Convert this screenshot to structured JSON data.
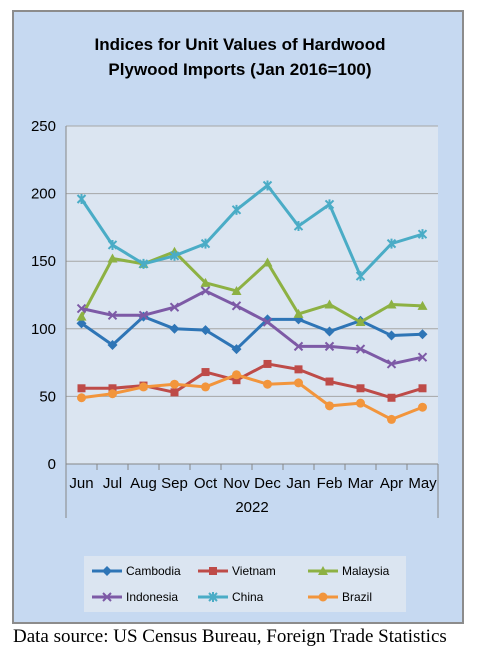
{
  "chart_data": {
    "type": "line",
    "title_lines": [
      "Indices for Unit Values of Hardwood",
      "Plywood Imports (Jan 2016=100)"
    ],
    "categories": [
      "Jun",
      "Jul",
      "Aug",
      "Sep",
      "Oct",
      "Nov",
      "Dec",
      "Jan",
      "Feb",
      "Mar",
      "Apr",
      "May"
    ],
    "year_label": "2022",
    "y_ticks": [
      0,
      50,
      100,
      150,
      200,
      250
    ],
    "ylim": [
      0,
      250
    ],
    "grid": true,
    "legend_position": "bottom",
    "series": [
      {
        "name": "Cambodia",
        "color": "#2e75b6",
        "marker": "diamond",
        "values": [
          104,
          88,
          109,
          100,
          99,
          85,
          107,
          107,
          98,
          106,
          95,
          96
        ]
      },
      {
        "name": "Vietnam",
        "color": "#be4b48",
        "marker": "square",
        "values": [
          56,
          56,
          58,
          53,
          68,
          62,
          74,
          70,
          61,
          56,
          49,
          56
        ]
      },
      {
        "name": "Malaysia",
        "color": "#8db143",
        "marker": "triangle",
        "values": [
          109,
          152,
          148,
          157,
          134,
          128,
          149,
          111,
          118,
          105,
          118,
          117
        ]
      },
      {
        "name": "Indonesia",
        "color": "#7d5aa6",
        "marker": "x",
        "values": [
          115,
          110,
          110,
          116,
          128,
          117,
          105,
          87,
          87,
          85,
          74,
          79
        ]
      },
      {
        "name": "China",
        "color": "#4aacc6",
        "marker": "star",
        "values": [
          196,
          162,
          148,
          154,
          163,
          188,
          206,
          176,
          192,
          139,
          163,
          170
        ]
      },
      {
        "name": "Brazil",
        "color": "#f2953c",
        "marker": "circle",
        "values": [
          49,
          52,
          57,
          59,
          57,
          66,
          59,
          60,
          43,
          45,
          33,
          42
        ]
      }
    ]
  },
  "source_text": "Data source: US Census Bureau, Foreign Trade Statistics"
}
